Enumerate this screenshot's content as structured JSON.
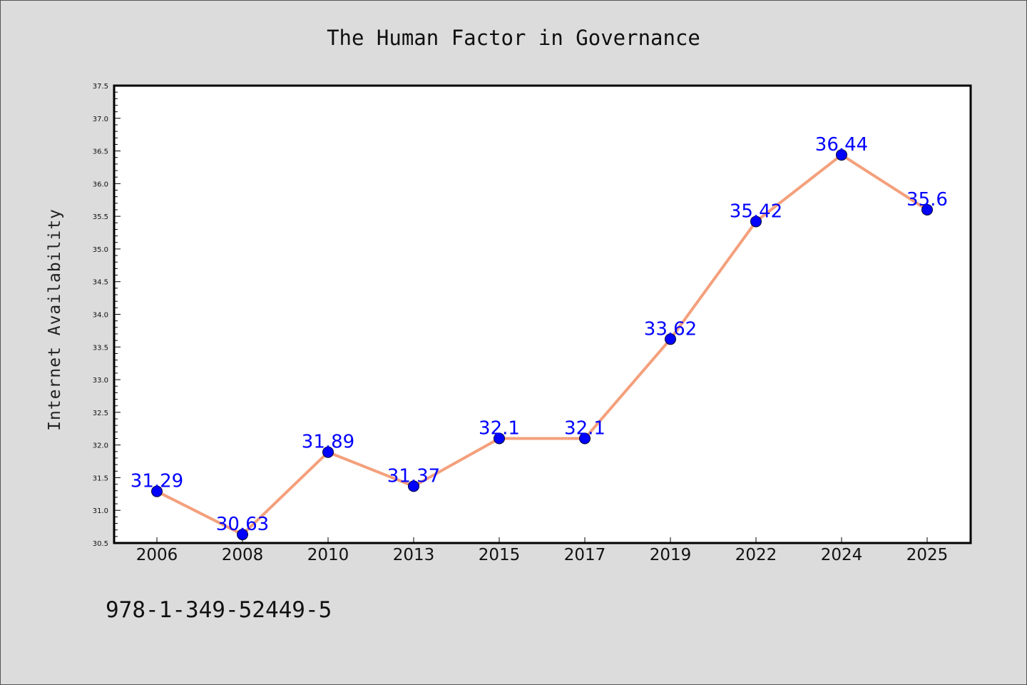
{
  "chart_data": {
    "type": "line",
    "title": "The Human Factor in Governance",
    "xlabel": "",
    "ylabel": "Internet Availability",
    "categories": [
      "2006",
      "2008",
      "2010",
      "2013",
      "2015",
      "2017",
      "2019",
      "2022",
      "2024",
      "2025"
    ],
    "series": [
      {
        "values": [
          31.29,
          30.63,
          31.89,
          31.37,
          32.1,
          32.1,
          33.62,
          35.42,
          36.44,
          35.6
        ],
        "labels": [
          "31.29",
          "30.63",
          "31.89",
          "31.37",
          "32.1",
          "32.1",
          "33.62",
          "35.42",
          "36.44",
          "35.6"
        ]
      }
    ],
    "ylim": [
      30.5,
      37.5
    ],
    "yticks": [
      "30.5",
      "31.0",
      "31.5",
      "32.0",
      "32.5",
      "33.0",
      "33.5",
      "34.0",
      "34.5",
      "35.0",
      "35.5",
      "36.0",
      "36.5",
      "37.0",
      "37.5"
    ],
    "grid": false,
    "legend": "none",
    "colors": {
      "line": "#f4a07c",
      "marker": "#0000ff",
      "label": "#0000ff",
      "plot_bg": "#ffffff",
      "page_bg": "#dcdcdc"
    }
  },
  "footer": {
    "isbn": "978-1-349-52449-5"
  }
}
